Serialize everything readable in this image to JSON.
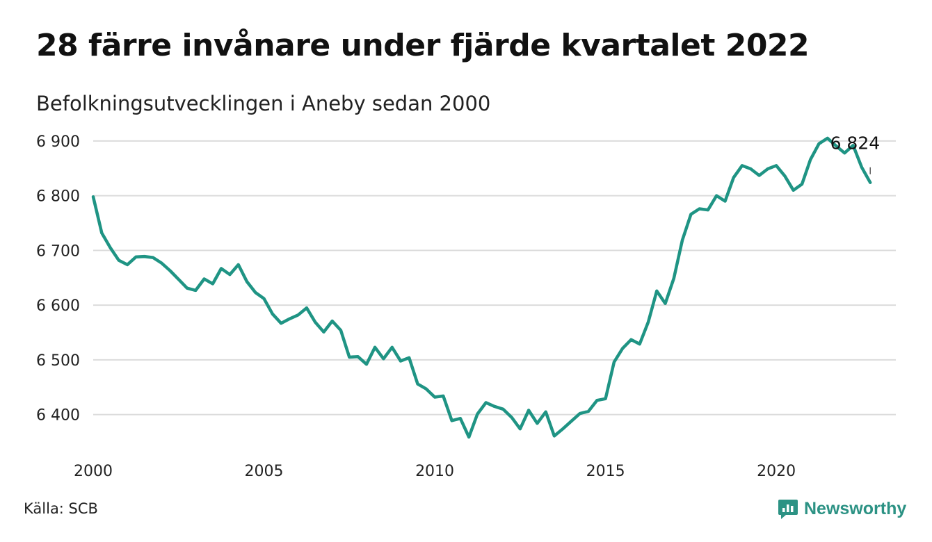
{
  "title": "28 färre invånare under fjärde kvartalet 2022",
  "subtitle": "Befolkningsutvecklingen i Aneby sedan 2000",
  "source": "Källa: SCB",
  "brand": {
    "name": "Newsworthy",
    "icon": "newsworthy-logo-icon",
    "color": "#2c9284"
  },
  "chart_data": {
    "type": "line",
    "title": "28 färre invånare under fjärde kvartalet 2022",
    "subtitle": "Befolkningsutvecklingen i Aneby sedan 2000",
    "xlabel": "",
    "ylabel": "",
    "xlim": [
      2000,
      2023.5
    ],
    "ylim": [
      6345,
      6910
    ],
    "x_ticks": [
      2000,
      2005,
      2010,
      2015,
      2020
    ],
    "x_tick_labels": [
      "2000",
      "2005",
      "2010",
      "2015",
      "2020"
    ],
    "y_ticks": [
      6400,
      6500,
      6600,
      6700,
      6800,
      6900
    ],
    "y_tick_labels": [
      "6 400",
      "6 500",
      "6 600",
      "6 700",
      "6 800",
      "6 900"
    ],
    "grid": "horizontal",
    "line_color": "#1f9484",
    "end_label": "6 824",
    "series": [
      {
        "x": [
          2000.0,
          2000.25,
          2000.5,
          2000.75,
          2001.0,
          2001.25,
          2001.5,
          2001.75,
          2002.0,
          2002.25,
          2002.5,
          2002.75,
          2003.0,
          2003.25,
          2003.5,
          2003.75,
          2004.0,
          2004.25,
          2004.5,
          2004.75,
          2005.0,
          2005.25,
          2005.5,
          2005.75,
          2006.0,
          2006.25,
          2006.5,
          2006.75,
          2007.0,
          2007.25,
          2007.5,
          2007.75,
          2008.0,
          2008.25,
          2008.5,
          2008.75,
          2009.0,
          2009.25,
          2009.5,
          2009.75,
          2010.0,
          2010.25,
          2010.5,
          2010.75,
          2011.0,
          2011.25,
          2011.5,
          2011.75,
          2012.0,
          2012.25,
          2012.5,
          2012.75,
          2013.0,
          2013.25,
          2013.5,
          2013.75,
          2014.0,
          2014.25,
          2014.5,
          2014.75,
          2015.0,
          2015.25,
          2015.5,
          2015.75,
          2016.0,
          2016.25,
          2016.5,
          2016.75,
          2017.0,
          2017.25,
          2017.5,
          2017.75,
          2018.0,
          2018.25,
          2018.5,
          2018.75,
          2019.0,
          2019.25,
          2019.5,
          2019.75,
          2020.0,
          2020.25,
          2020.5,
          2020.75,
          2021.0,
          2021.25,
          2021.5,
          2021.75,
          2022.0,
          2022.25,
          2022.5,
          2022.75
        ],
        "values": [
          6798,
          6732,
          6705,
          6682,
          6674,
          6688,
          6689,
          6687,
          6677,
          6663,
          6647,
          6631,
          6627,
          6648,
          6639,
          6667,
          6656,
          6674,
          6643,
          6623,
          6612,
          6584,
          6567,
          6575,
          6582,
          6595,
          6569,
          6551,
          6571,
          6554,
          6505,
          6506,
          6492,
          6523,
          6502,
          6523,
          6498,
          6504,
          6456,
          6447,
          6432,
          6434,
          6389,
          6393,
          6359,
          6401,
          6422,
          6415,
          6410,
          6395,
          6374,
          6408,
          6384,
          6405,
          6361,
          6374,
          6388,
          6402,
          6406,
          6426,
          6429,
          6496,
          6521,
          6537,
          6529,
          6569,
          6626,
          6603,
          6649,
          6719,
          6766,
          6776,
          6774,
          6800,
          6790,
          6833,
          6855,
          6849,
          6837,
          6849,
          6855,
          6836,
          6810,
          6821,
          6866,
          6895,
          6905,
          6891,
          6878,
          6892,
          6852,
          6824
        ]
      }
    ]
  }
}
